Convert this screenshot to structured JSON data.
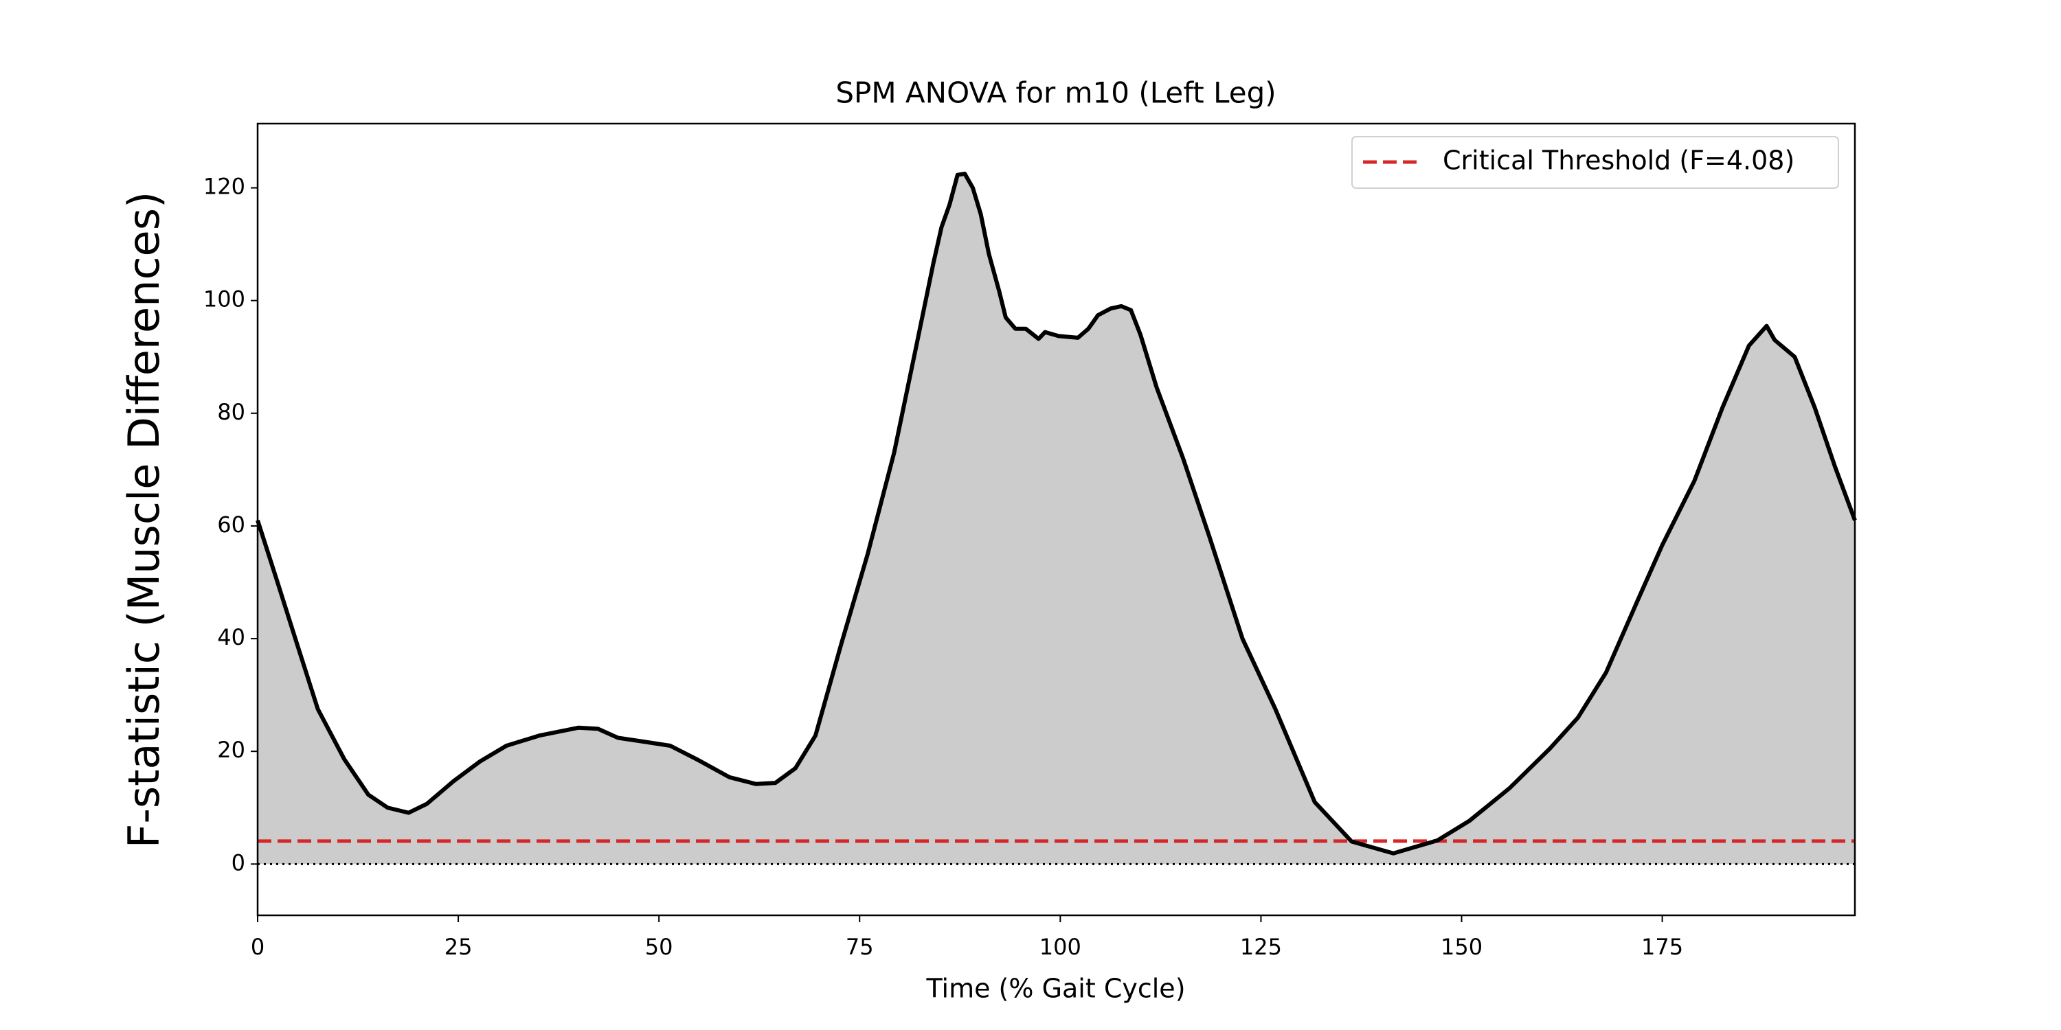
{
  "chart_data": {
    "type": "area",
    "title": "SPM ANOVA for m10 (Left Leg)",
    "x_label": "Time (% Gait Cycle)",
    "y_label": "F-statistic (Muscle Differences)",
    "x": [
      0,
      2.3,
      4.9,
      7.5,
      10.8,
      13.8,
      16.2,
      18.8,
      21.1,
      24.4,
      27.7,
      31,
      35.1,
      40,
      42.4,
      44.9,
      48.2,
      51.4,
      54.7,
      58.8,
      62.1,
      64.5,
      67,
      69.5,
      72.7,
      76,
      79.3,
      82,
      84.2,
      85.2,
      86.2,
      87.2,
      88.1,
      89.1,
      90.1,
      91.1,
      92.4,
      93.2,
      94.4,
      95.7,
      97.3,
      98.1,
      99.8,
      102.2,
      103.5,
      104.7,
      106.3,
      107.6,
      108.8,
      110,
      112,
      115.3,
      118.6,
      122.7,
      126.8,
      131.7,
      136.3,
      141.5,
      147,
      151,
      156,
      161,
      164.5,
      168,
      172,
      175,
      179,
      182.5,
      185.8,
      188,
      189,
      191.5,
      194,
      196.5,
      199
    ],
    "values": [
      61,
      50.8,
      39.1,
      27.5,
      18.6,
      12.3,
      10,
      9.1,
      10.7,
      14.7,
      18.2,
      21,
      22.8,
      24.2,
      24,
      22.4,
      21.7,
      21,
      18.6,
      15.4,
      14.2,
      14.4,
      17,
      22.8,
      39,
      55,
      73,
      91.5,
      106.7,
      113,
      117,
      122.3,
      122.5,
      120,
      115.3,
      108.3,
      101.6,
      97,
      95,
      95,
      93.2,
      94.4,
      93.7,
      93.4,
      95,
      97.4,
      98.6,
      99,
      98.3,
      93.9,
      84.6,
      72,
      58,
      40,
      27.5,
      11,
      4,
      1.9,
      4.2,
      7.7,
      13.5,
      20.5,
      26,
      34,
      47,
      56.6,
      68,
      81,
      92,
      95.5,
      93,
      90,
      81,
      70.6,
      61
    ],
    "color": "#000000",
    "fill_color": "#cccccc",
    "threshold": {
      "name": "Critical Threshold (F=4.08)",
      "value": 4.08,
      "color": "#d62728"
    },
    "reference_line": 0,
    "xlim": [
      0,
      199
    ],
    "ylim": [
      -9.1,
      131.4
    ],
    "xticks": [
      0,
      25,
      50,
      75,
      100,
      125,
      150,
      175
    ],
    "yticks": [
      0,
      20,
      40,
      60,
      80,
      100,
      120
    ],
    "legend": "upper right"
  }
}
